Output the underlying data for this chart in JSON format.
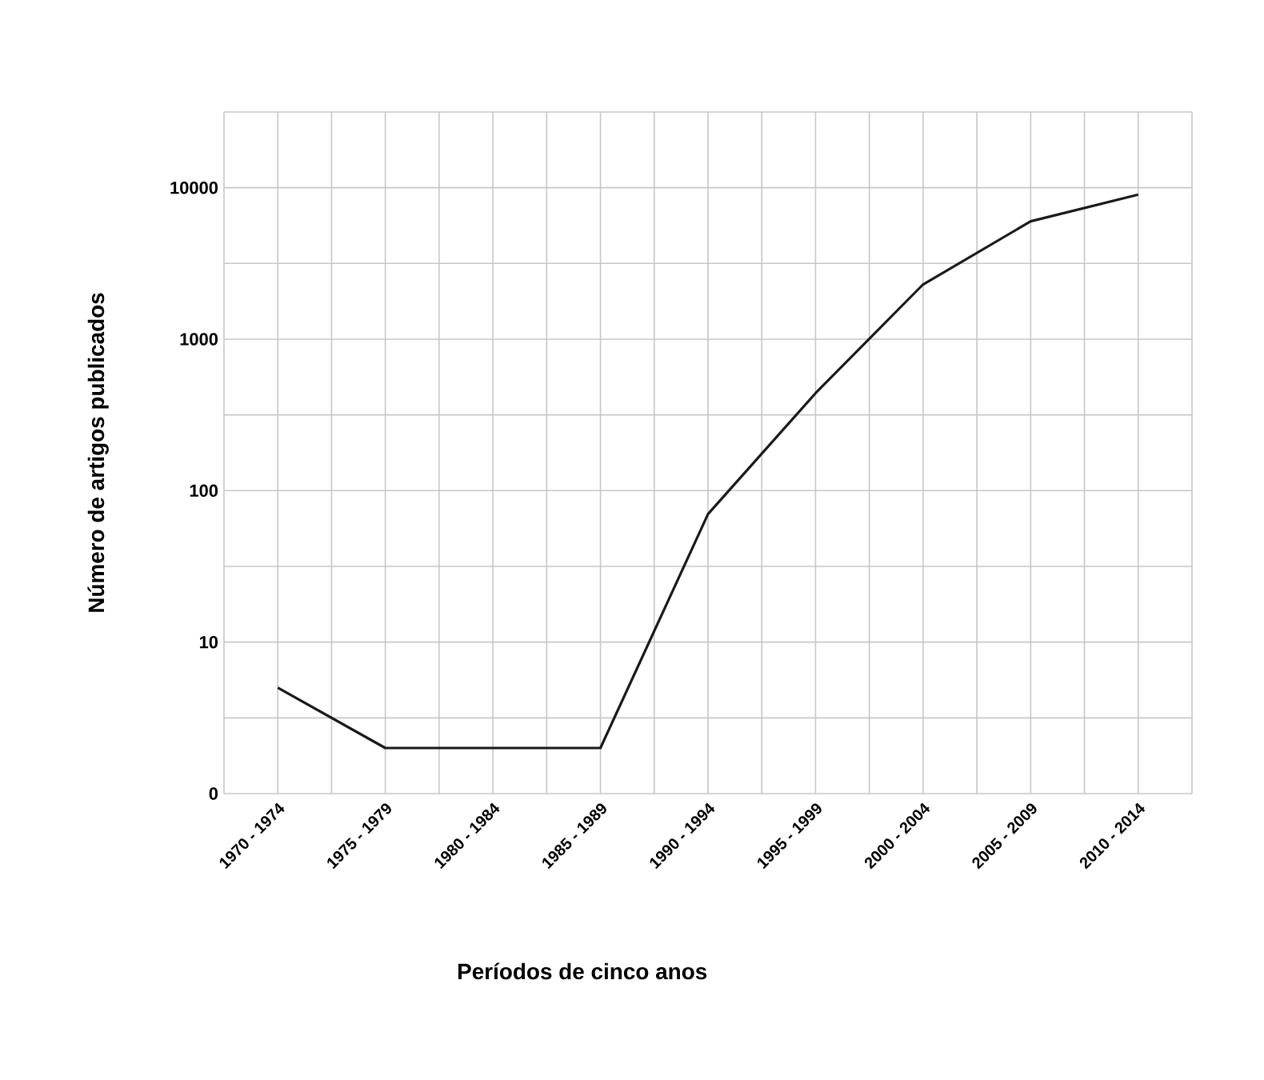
{
  "chart_data": {
    "type": "line",
    "xlabel": "Períodos de cinco anos",
    "ylabel": "Número de artigos publicados",
    "categories": [
      "1970 - 1974",
      "1975 - 1979",
      "1980 - 1984",
      "1985 - 1989",
      "1990 - 1994",
      "1995 - 1999",
      "2000 - 2004",
      "2005 - 2009",
      "2010 - 2014"
    ],
    "series": [
      {
        "color": "#1a1a1a",
        "values": [
          5,
          2,
          2,
          2,
          70,
          440,
          2300,
          6000,
          9000
        ]
      }
    ],
    "log": "y",
    "ylim": [
      0,
      31623
    ],
    "yticks": [
      0,
      10,
      100,
      1000,
      10000
    ],
    "grid": true,
    "marker": "none",
    "line_style": "solid"
  }
}
